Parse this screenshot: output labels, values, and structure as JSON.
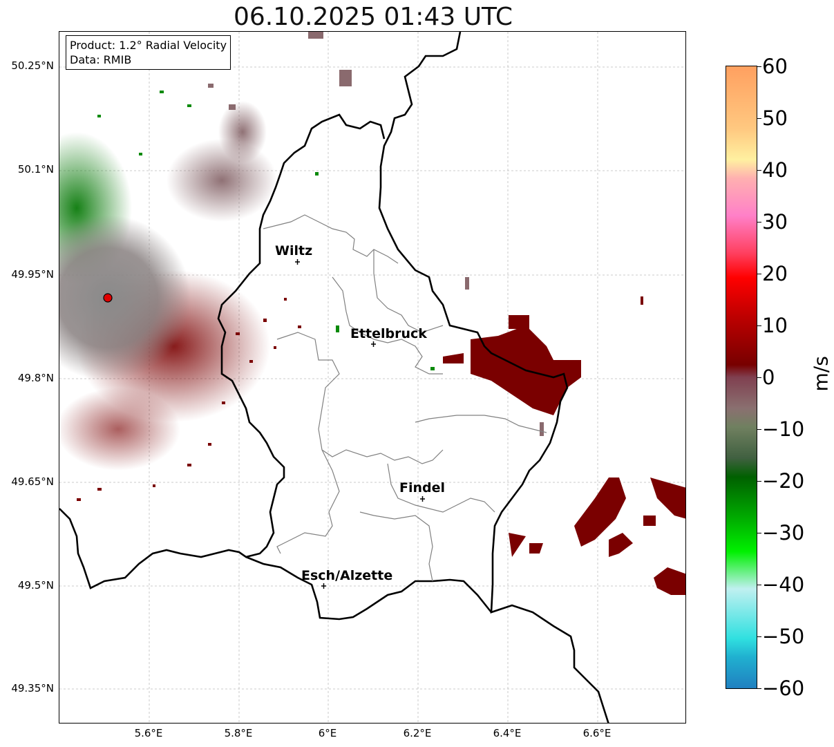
{
  "title": "06.10.2025 01:43 UTC",
  "info": {
    "product": "Product: 1.2° Radial Velocity",
    "data": "Data: RMIB"
  },
  "latitude_labels": [
    "50.25°N",
    "50.1°N",
    "49.95°N",
    "49.8°N",
    "49.65°N",
    "49.5°N",
    "49.35°N"
  ],
  "longitude_labels": [
    "5.6°E",
    "5.8°E",
    "6°E",
    "6.2°E",
    "6.4°E",
    "6.6°E"
  ],
  "cities": [
    "Wiltz",
    "Ettelbruck",
    "Findel",
    "Esch/Alzette"
  ],
  "colorbar": {
    "unit": "m/s",
    "tick_labels": [
      "60",
      "50",
      "40",
      "30",
      "20",
      "10",
      "0",
      "−10",
      "−20",
      "−30",
      "−40",
      "−50",
      "−60"
    ],
    "range": [
      -60,
      60
    ]
  },
  "colors": {
    "radar_site": "#e00000",
    "inbound_strong": "#7a0000",
    "near_zero": "#8a7070",
    "outbound": "#0a7a0a"
  }
}
